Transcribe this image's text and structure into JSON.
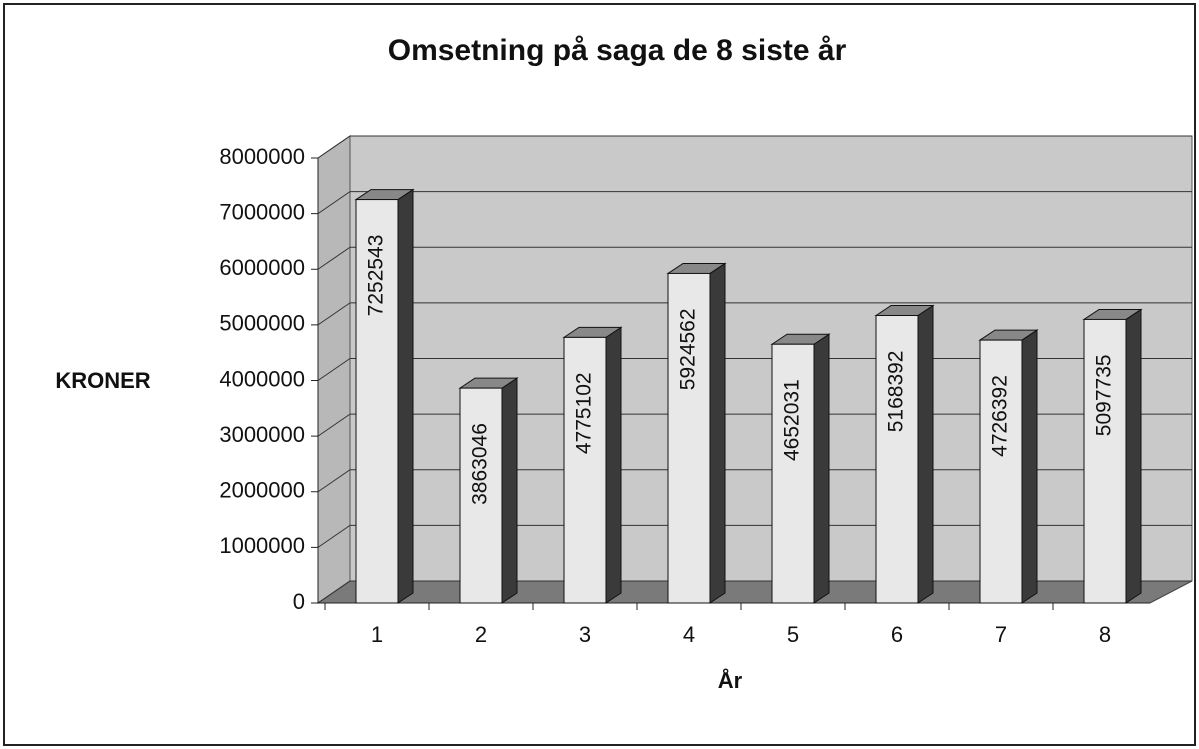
{
  "chart_data": {
    "type": "bar",
    "title": "Omsetning på saga de 8 siste år",
    "x_label": "År",
    "y_label": "KRONER",
    "categories": [
      "1",
      "2",
      "3",
      "4",
      "5",
      "6",
      "7",
      "8"
    ],
    "values": [
      7252543,
      3863046,
      4775102,
      5924562,
      4652031,
      5168392,
      4726392,
      5097735
    ],
    "color": "#e8e8e8",
    "ylim": [
      0,
      8000000
    ],
    "yticks": [
      0,
      1000000,
      2000000,
      3000000,
      4000000,
      5000000,
      6000000,
      7000000,
      8000000
    ],
    "grid": true
  }
}
